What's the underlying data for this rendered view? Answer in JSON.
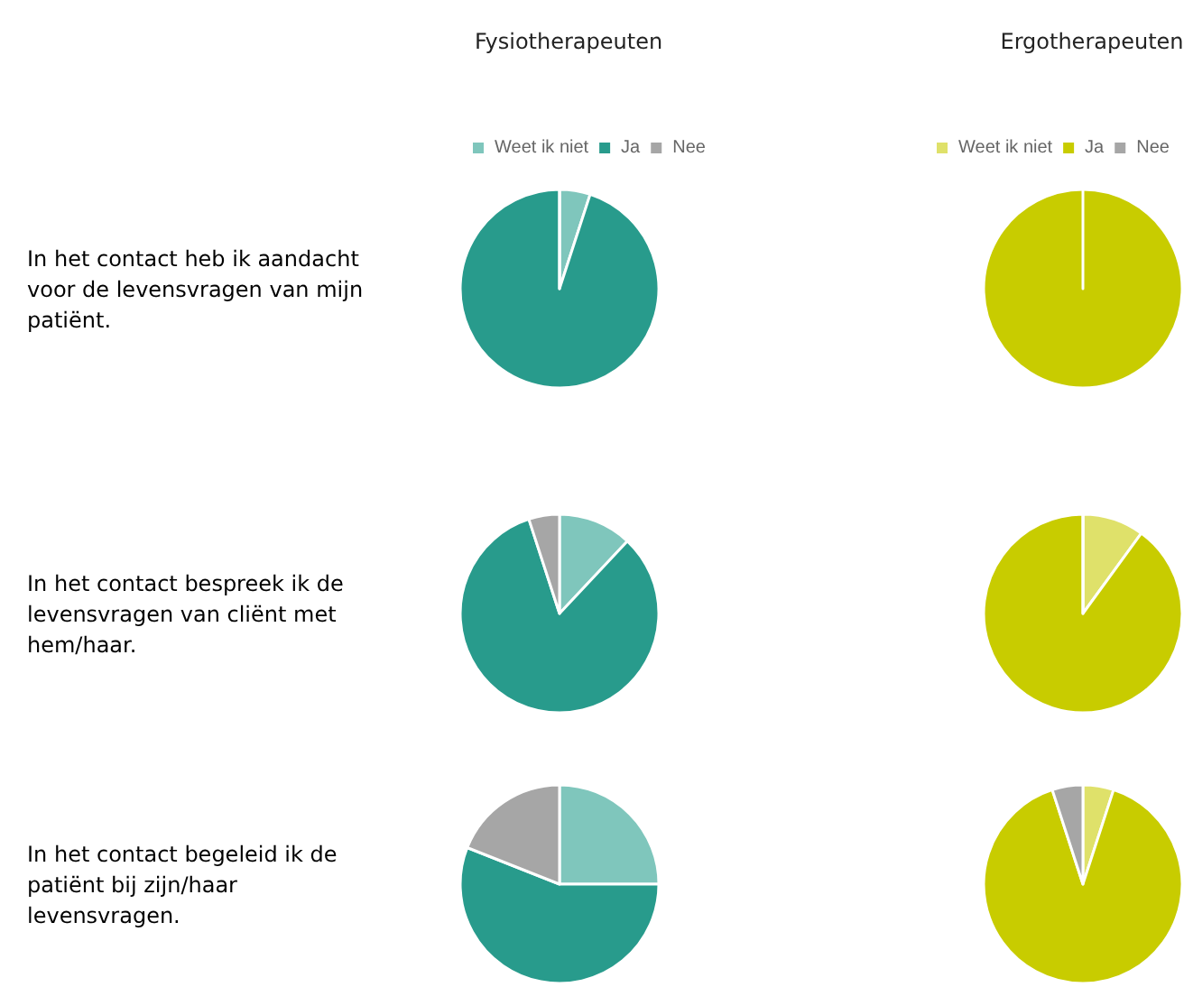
{
  "chart_data": [
    {
      "type": "pie",
      "title": "Fysiotherapeuten",
      "categories": [
        "Weet ik niet",
        "Ja",
        "Nee"
      ],
      "values": [
        5,
        95,
        0
      ],
      "colors": [
        "#7fc6bc",
        "#289b8c",
        "#a6a6a6"
      ],
      "legend": "top",
      "annotations": [
        "In het contact heb ik aandacht voor de levensvragen van mijn patiënt."
      ]
    },
    {
      "type": "pie",
      "title": "Ergotherapeuten",
      "categories": [
        "Weet ik niet",
        "Ja",
        "Nee"
      ],
      "values": [
        0,
        100,
        0
      ],
      "colors": [
        "#dfe16a",
        "#c8cc00",
        "#a6a6a6"
      ],
      "legend": "top"
    },
    {
      "type": "pie",
      "categories": [
        null,
        null,
        null
      ],
      "values": [
        12,
        83,
        5
      ],
      "colors": [
        "#7fc6bc",
        "#289b8c",
        "#a6a6a6"
      ],
      "annotations": [
        "In het contact bespreek ik de levensvragen van cliënt met hem/haar."
      ]
    },
    {
      "type": "pie",
      "categories": [
        null,
        null,
        null
      ],
      "values": [
        10,
        90,
        0
      ],
      "colors": [
        "#dfe16a",
        "#c8cc00",
        "#a6a6a6"
      ]
    },
    {
      "type": "pie",
      "categories": [
        null,
        null,
        null
      ],
      "values": [
        25,
        56,
        19
      ],
      "colors": [
        "#7fc6bc",
        "#289b8c",
        "#a6a6a6"
      ],
      "annotations": [
        "In het contact begeleid ik de patiënt bij zijn/haar levensvragen."
      ]
    },
    {
      "type": "pie",
      "categories": [
        null,
        null,
        null
      ],
      "values": [
        5,
        90,
        5
      ],
      "colors": [
        "#dfe16a",
        "#c8cc00",
        "#a6a6a6"
      ]
    }
  ]
}
